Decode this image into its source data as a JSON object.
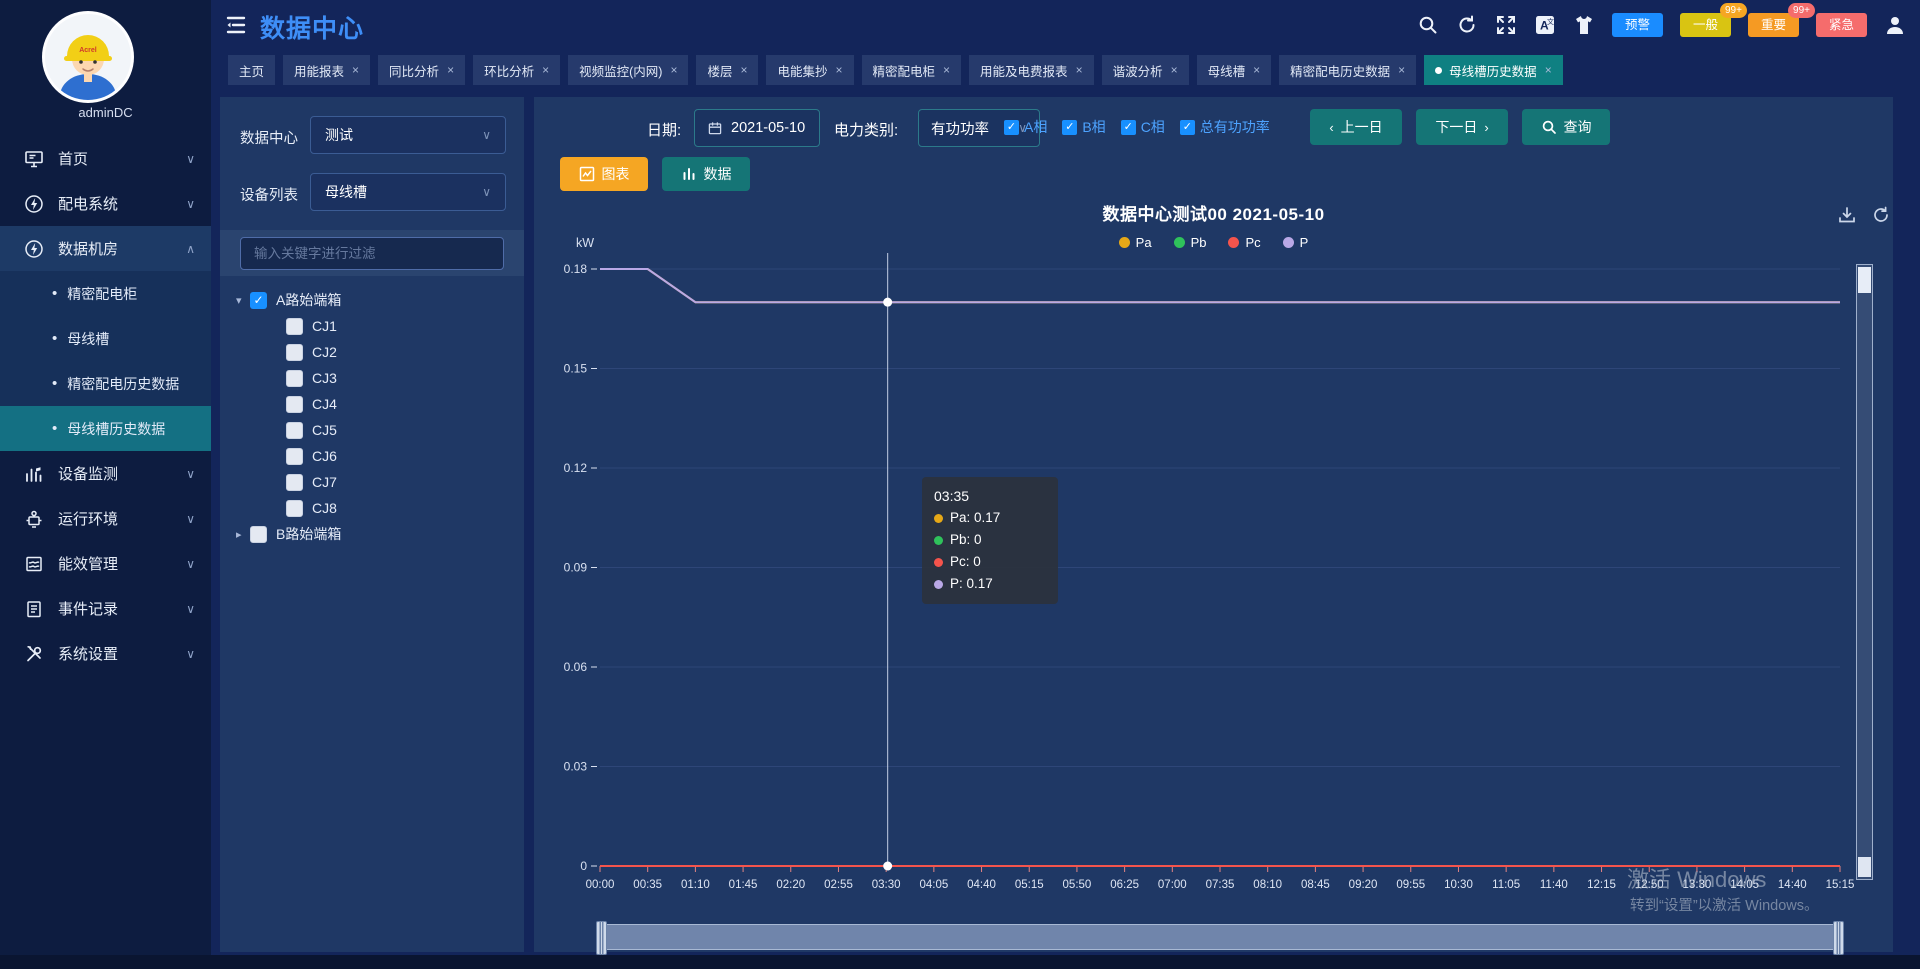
{
  "header": {
    "title": "数据中心",
    "icons": [
      "hamburger-icon",
      "search-icon",
      "refresh-icon",
      "fullscreen-icon",
      "translate-icon",
      "theme-icon",
      "user-icon"
    ],
    "badges": [
      {
        "label": "预警",
        "color": "#1a8cff"
      },
      {
        "label": "一般",
        "color": "#d9c412",
        "count": "99+",
        "count_color": "#f5a623"
      },
      {
        "label": "重要",
        "color": "#f59a23",
        "count": "99+",
        "count_color": "#f56c6c"
      },
      {
        "label": "紧急",
        "color": "#f56c6c"
      }
    ]
  },
  "tabs": [
    {
      "label": "主页",
      "closable": false,
      "active": false
    },
    {
      "label": "用能报表",
      "closable": true,
      "active": false
    },
    {
      "label": "同比分析",
      "closable": true,
      "active": false
    },
    {
      "label": "环比分析",
      "closable": true,
      "active": false
    },
    {
      "label": "视频监控(内网)",
      "closable": true,
      "active": false
    },
    {
      "label": "楼层",
      "closable": true,
      "active": false
    },
    {
      "label": "电能集抄",
      "closable": true,
      "active": false
    },
    {
      "label": "精密配电柜",
      "closable": true,
      "active": false
    },
    {
      "label": "用能及电费报表",
      "closable": true,
      "active": false
    },
    {
      "label": "谐波分析",
      "closable": true,
      "active": false
    },
    {
      "label": "母线槽",
      "closable": true,
      "active": false
    },
    {
      "label": "精密配电历史数据",
      "closable": true,
      "active": false
    },
    {
      "label": "母线槽历史数据",
      "closable": true,
      "active": true
    }
  ],
  "sidebar": {
    "user": "adminDC",
    "avatar_brand": "Acrel",
    "items": [
      {
        "label": "首页",
        "icon": "home-icon",
        "expanded": false,
        "children": []
      },
      {
        "label": "配电系统",
        "icon": "power-icon",
        "expanded": false,
        "children": []
      },
      {
        "label": "数据机房",
        "icon": "datacenter-icon",
        "expanded": true,
        "children": [
          {
            "label": "精密配电柜",
            "active": false
          },
          {
            "label": "母线槽",
            "active": false
          },
          {
            "label": "精密配电历史数据",
            "active": false
          },
          {
            "label": "母线槽历史数据",
            "active": true
          }
        ]
      },
      {
        "label": "设备监测",
        "icon": "device-monitor-icon",
        "expanded": false,
        "children": []
      },
      {
        "label": "运行环境",
        "icon": "environment-icon",
        "expanded": false,
        "children": []
      },
      {
        "label": "能效管理",
        "icon": "energy-icon",
        "expanded": false,
        "children": []
      },
      {
        "label": "事件记录",
        "icon": "events-icon",
        "expanded": false,
        "children": []
      },
      {
        "label": "系统设置",
        "icon": "settings-icon",
        "expanded": false,
        "children": []
      }
    ]
  },
  "filter_panel": {
    "datacenter_label": "数据中心",
    "datacenter_value": "测试",
    "device_label": "设备列表",
    "device_value": "母线槽",
    "search_placeholder": "输入关键字进行过滤",
    "tree": [
      {
        "label": "A路始端箱",
        "checked": true,
        "expanded": true,
        "children": [
          "CJ1",
          "CJ2",
          "CJ3",
          "CJ4",
          "CJ5",
          "CJ6",
          "CJ7",
          "CJ8"
        ]
      },
      {
        "label": "B路始端箱",
        "checked": false,
        "expanded": false,
        "children": []
      }
    ]
  },
  "toolbar": {
    "date_label": "日期:",
    "date_value": "2021-05-10",
    "power_label": "电力类别:",
    "power_value": "有功功率",
    "phases": [
      {
        "label": "A相",
        "checked": true
      },
      {
        "label": "B相",
        "checked": true
      },
      {
        "label": "C相",
        "checked": true
      },
      {
        "label": "总有功功率",
        "checked": true
      }
    ],
    "prev_label": "上一日",
    "next_label": "下一日",
    "query_label": "查询",
    "chart_btn": "图表",
    "data_btn": "数据"
  },
  "chart_data": {
    "type": "line",
    "title": "数据中心测试00  2021-05-10",
    "unit": "kW",
    "ylim": [
      0,
      0.18
    ],
    "yticks": [
      0.18,
      0.15,
      0.12,
      0.09,
      0.06,
      0.03,
      0
    ],
    "grid": true,
    "legend_position": "top-center",
    "x_labels": [
      "00:00",
      "00:35",
      "01:10",
      "01:45",
      "02:20",
      "02:55",
      "03:30",
      "04:05",
      "04:40",
      "05:15",
      "05:50",
      "06:25",
      "07:00",
      "07:35",
      "08:10",
      "08:45",
      "09:20",
      "09:55",
      "10:30",
      "11:05",
      "11:40",
      "12:15",
      "12:50",
      "13:30",
      "14:05",
      "14:40",
      "15:15"
    ],
    "series": [
      {
        "name": "Pa",
        "color": "#e6a817",
        "values": [
          0.18,
          0.18,
          0.17,
          0.17,
          0.17,
          0.17,
          0.17,
          0.17,
          0.17,
          0.17,
          0.17,
          0.17,
          0.17,
          0.17,
          0.17,
          0.17,
          0.17,
          0.17,
          0.17,
          0.17,
          0.17,
          0.17,
          0.17,
          0.17,
          0.17,
          0.17,
          0.17
        ]
      },
      {
        "name": "Pb",
        "color": "#2fc25b",
        "values": [
          0,
          0,
          0,
          0,
          0,
          0,
          0,
          0,
          0,
          0,
          0,
          0,
          0,
          0,
          0,
          0,
          0,
          0,
          0,
          0,
          0,
          0,
          0,
          0,
          0,
          0,
          0
        ]
      },
      {
        "name": "Pc",
        "color": "#f5544c",
        "values": [
          0,
          0,
          0,
          0,
          0,
          0,
          0,
          0,
          0,
          0,
          0,
          0,
          0,
          0,
          0,
          0,
          0,
          0,
          0,
          0,
          0,
          0,
          0,
          0,
          0,
          0,
          0
        ]
      },
      {
        "name": "P",
        "color": "#b9a8e6",
        "values": [
          0.18,
          0.18,
          0.17,
          0.17,
          0.17,
          0.17,
          0.17,
          0.17,
          0.17,
          0.17,
          0.17,
          0.17,
          0.17,
          0.17,
          0.17,
          0.17,
          0.17,
          0.17,
          0.17,
          0.17,
          0.17,
          0.17,
          0.17,
          0.17,
          0.17,
          0.17,
          0.17
        ]
      }
    ],
    "crosshair": {
      "time": "03:35",
      "x_frac": 0.232,
      "markers": [
        0.17,
        0
      ]
    }
  },
  "tooltip": {
    "time": "03:35",
    "rows": [
      {
        "name": "Pa",
        "value": "0.17",
        "color": "#e6a817"
      },
      {
        "name": "Pb",
        "value": "0",
        "color": "#2fc25b"
      },
      {
        "name": "Pc",
        "value": "0",
        "color": "#f5544c"
      },
      {
        "name": "P",
        "value": "0.17",
        "color": "#b9a8e6"
      }
    ]
  },
  "watermark": {
    "line1": "激活 Windows",
    "line2": "转到“设置”以激活 Windows。"
  }
}
